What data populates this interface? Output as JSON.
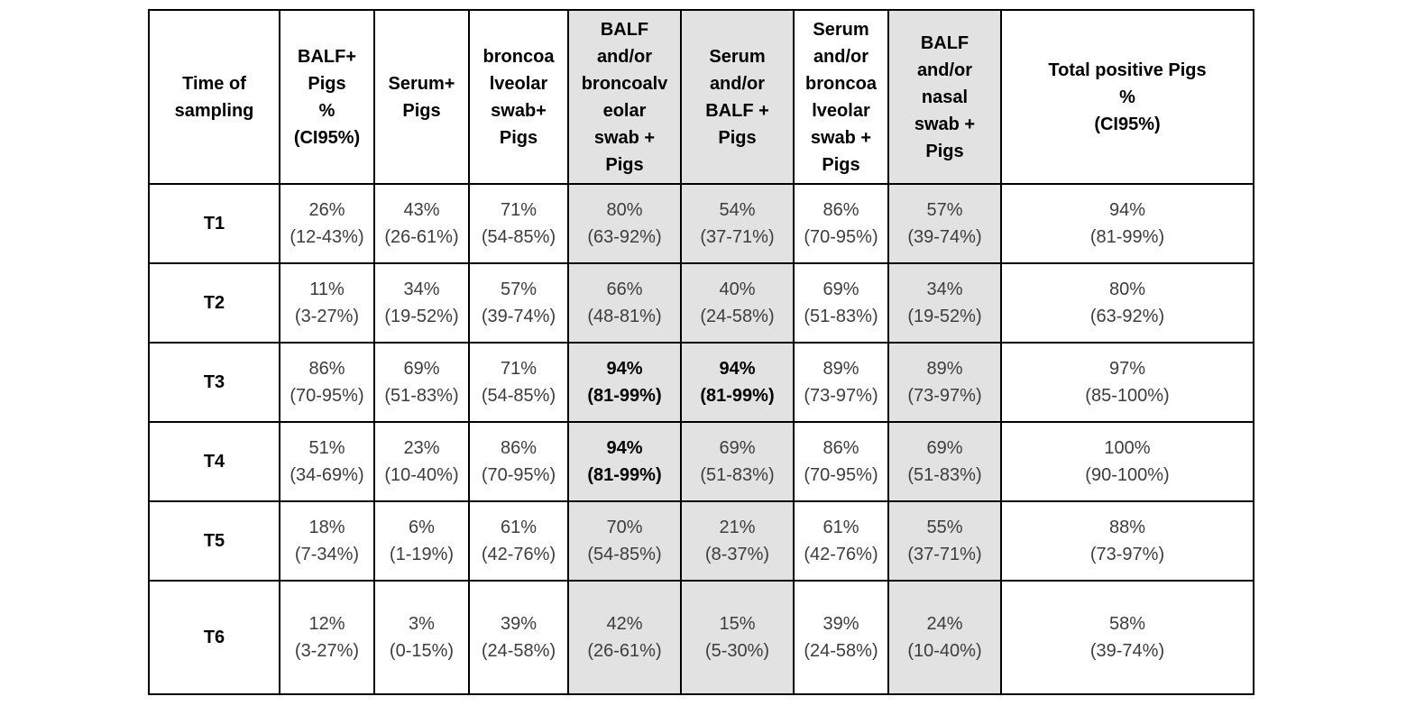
{
  "colors": {
    "shaded_column_background": "#e2e2e2",
    "border": "#000000",
    "data_text": "#3d3d3d",
    "header_text": "#000000"
  },
  "table": {
    "headers": [
      {
        "id": "time-of-sampling",
        "lines": [
          "Time of",
          "sampling"
        ],
        "shaded": false
      },
      {
        "id": "balf-pos-pigs",
        "lines": [
          "BALF+",
          "Pigs",
          "%",
          "(CI95%)"
        ],
        "shaded": false
      },
      {
        "id": "serum-pos-pigs",
        "lines": [
          "Serum+",
          "Pigs"
        ],
        "shaded": false
      },
      {
        "id": "broncoalveolar-swab-pos-pigs",
        "lines": [
          "broncoa",
          "lveolar",
          "swab+",
          "Pigs"
        ],
        "shaded": false
      },
      {
        "id": "balf-or-broncoalveolar-swab-pos-pigs",
        "lines": [
          "BALF",
          "and/or",
          "broncoalv",
          "eolar",
          "swab +",
          "Pigs"
        ],
        "shaded": true
      },
      {
        "id": "serum-or-balf-pos-pigs",
        "lines": [
          "Serum",
          "and/or",
          "BALF +",
          "Pigs"
        ],
        "shaded": true
      },
      {
        "id": "serum-or-broncoalveolar-swab-pos-pigs",
        "lines": [
          "Serum",
          "and/or",
          "broncoa",
          "lveolar",
          "swab +",
          "Pigs"
        ],
        "shaded": false
      },
      {
        "id": "balf-or-nasal-swab-pos-pigs",
        "lines": [
          "BALF",
          "and/or",
          "nasal",
          "swab +",
          "Pigs"
        ],
        "shaded": true
      },
      {
        "id": "total-positive-pigs",
        "lines": [
          "Total positive Pigs",
          "%",
          "(CI95%)"
        ],
        "shaded": false
      }
    ],
    "rows": [
      {
        "label": "T1",
        "cells": [
          {
            "pct": "26%",
            "ci": "(12-43%)",
            "bold": false
          },
          {
            "pct": "43%",
            "ci": "(26-61%)",
            "bold": false
          },
          {
            "pct": "71%",
            "ci": "(54-85%)",
            "bold": false
          },
          {
            "pct": "80%",
            "ci": "(63-92%)",
            "bold": false
          },
          {
            "pct": "54%",
            "ci": "(37-71%)",
            "bold": false
          },
          {
            "pct": "86%",
            "ci": "(70-95%)",
            "bold": false
          },
          {
            "pct": "57%",
            "ci": "(39-74%)",
            "bold": false
          },
          {
            "pct": "94%",
            "ci": "(81-99%)",
            "bold": false
          }
        ]
      },
      {
        "label": "T2",
        "cells": [
          {
            "pct": "11%",
            "ci": "(3-27%)",
            "bold": false
          },
          {
            "pct": "34%",
            "ci": "(19-52%)",
            "bold": false
          },
          {
            "pct": "57%",
            "ci": "(39-74%)",
            "bold": false
          },
          {
            "pct": "66%",
            "ci": "(48-81%)",
            "bold": false
          },
          {
            "pct": "40%",
            "ci": "(24-58%)",
            "bold": false
          },
          {
            "pct": "69%",
            "ci": "(51-83%)",
            "bold": false
          },
          {
            "pct": "34%",
            "ci": "(19-52%)",
            "bold": false
          },
          {
            "pct": "80%",
            "ci": "(63-92%)",
            "bold": false
          }
        ]
      },
      {
        "label": "T3",
        "cells": [
          {
            "pct": "86%",
            "ci": "(70-95%)",
            "bold": false
          },
          {
            "pct": "69%",
            "ci": "(51-83%)",
            "bold": false
          },
          {
            "pct": "71%",
            "ci": "(54-85%)",
            "bold": false
          },
          {
            "pct": "94%",
            "ci": "(81-99%)",
            "bold": true
          },
          {
            "pct": "94%",
            "ci": "(81-99%)",
            "bold": true
          },
          {
            "pct": "89%",
            "ci": "(73-97%)",
            "bold": false
          },
          {
            "pct": "89%",
            "ci": "(73-97%)",
            "bold": false
          },
          {
            "pct": "97%",
            "ci": "(85-100%)",
            "bold": false
          }
        ]
      },
      {
        "label": "T4",
        "cells": [
          {
            "pct": "51%",
            "ci": "(34-69%)",
            "bold": false
          },
          {
            "pct": "23%",
            "ci": "(10-40%)",
            "bold": false
          },
          {
            "pct": "86%",
            "ci": "(70-95%)",
            "bold": false
          },
          {
            "pct": "94%",
            "ci": "(81-99%)",
            "bold": true
          },
          {
            "pct": "69%",
            "ci": "(51-83%)",
            "bold": false
          },
          {
            "pct": "86%",
            "ci": "(70-95%)",
            "bold": false
          },
          {
            "pct": "69%",
            "ci": "(51-83%)",
            "bold": false
          },
          {
            "pct": "100%",
            "ci": "(90-100%)",
            "bold": false
          }
        ]
      },
      {
        "label": "T5",
        "cells": [
          {
            "pct": "18%",
            "ci": "(7-34%)",
            "bold": false
          },
          {
            "pct": "6%",
            "ci": "(1-19%)",
            "bold": false
          },
          {
            "pct": "61%",
            "ci": "(42-76%)",
            "bold": false
          },
          {
            "pct": "70%",
            "ci": "(54-85%)",
            "bold": false
          },
          {
            "pct": "21%",
            "ci": "(8-37%)",
            "bold": false
          },
          {
            "pct": "61%",
            "ci": "(42-76%)",
            "bold": false
          },
          {
            "pct": "55%",
            "ci": "(37-71%)",
            "bold": false
          },
          {
            "pct": "88%",
            "ci": "(73-97%)",
            "bold": false
          }
        ]
      },
      {
        "label": "T6",
        "cells": [
          {
            "pct": "12%",
            "ci": "(3-27%)",
            "bold": false
          },
          {
            "pct": "3%",
            "ci": "(0-15%)",
            "bold": false
          },
          {
            "pct": "39%",
            "ci": "(24-58%)",
            "bold": false
          },
          {
            "pct": "42%",
            "ci": "(26-61%)",
            "bold": false
          },
          {
            "pct": "15%",
            "ci": "(5-30%)",
            "bold": false
          },
          {
            "pct": "39%",
            "ci": "(24-58%)",
            "bold": false
          },
          {
            "pct": "24%",
            "ci": "(10-40%)",
            "bold": false
          },
          {
            "pct": "58%",
            "ci": "(39-74%)",
            "bold": false
          }
        ]
      }
    ]
  },
  "chart_data": {
    "type": "table",
    "columns": [
      "Time of sampling",
      "BALF+ Pigs % (CI95%)",
      "Serum+ Pigs",
      "broncoalveolar swab+ Pigs",
      "BALF and/or broncoalveolar swab + Pigs",
      "Serum and/or BALF + Pigs",
      "Serum and/or broncoalveolar swab + Pigs",
      "BALF and/or nasal swab + Pigs",
      "Total positive Pigs % (CI95%)"
    ],
    "rows": [
      [
        "T1",
        "26% (12-43%)",
        "43% (26-61%)",
        "71% (54-85%)",
        "80% (63-92%)",
        "54% (37-71%)",
        "86% (70-95%)",
        "57% (39-74%)",
        "94% (81-99%)"
      ],
      [
        "T2",
        "11% (3-27%)",
        "34% (19-52%)",
        "57% (39-74%)",
        "66% (48-81%)",
        "40% (24-58%)",
        "69% (51-83%)",
        "34% (19-52%)",
        "80% (63-92%)"
      ],
      [
        "T3",
        "86% (70-95%)",
        "69% (51-83%)",
        "71% (54-85%)",
        "94% (81-99%)",
        "94% (81-99%)",
        "89% (73-97%)",
        "89% (73-97%)",
        "97% (85-100%)"
      ],
      [
        "T4",
        "51% (34-69%)",
        "23% (10-40%)",
        "86% (70-95%)",
        "94% (81-99%)",
        "69% (51-83%)",
        "86% (70-95%)",
        "69% (51-83%)",
        "100% (90-100%)"
      ],
      [
        "T5",
        "18% (7-34%)",
        "6% (1-19%)",
        "61% (42-76%)",
        "70% (54-85%)",
        "21% (8-37%)",
        "61% (42-76%)",
        "55% (37-71%)",
        "88% (73-97%)"
      ],
      [
        "T6",
        "12% (3-27%)",
        "3% (0-15%)",
        "39% (24-58%)",
        "42% (26-61%)",
        "15% (5-30%)",
        "39% (24-58%)",
        "24% (10-40%)",
        "58% (39-74%)"
      ]
    ],
    "bold_cells": [
      {
        "row": "T3",
        "column": "BALF and/or broncoalveolar swab + Pigs"
      },
      {
        "row": "T3",
        "column": "Serum and/or BALF + Pigs"
      },
      {
        "row": "T4",
        "column": "BALF and/or broncoalveolar swab + Pigs"
      }
    ],
    "shaded_columns": [
      "BALF and/or broncoalveolar swab + Pigs",
      "Serum and/or BALF + Pigs",
      "BALF and/or nasal swab + Pigs"
    ]
  }
}
